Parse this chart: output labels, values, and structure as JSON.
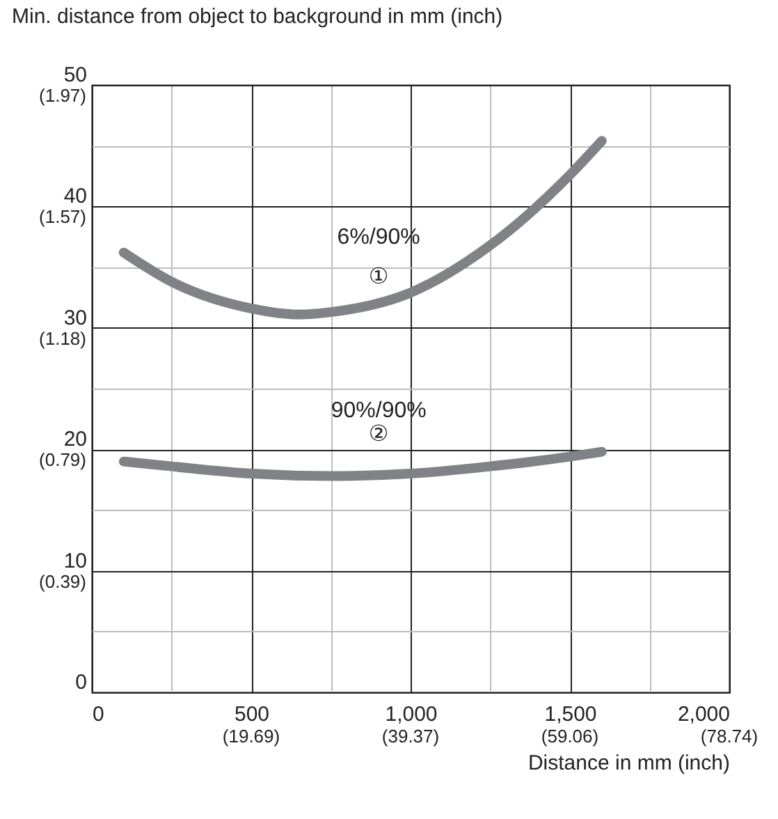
{
  "chart_data": {
    "type": "line",
    "xlabel": "Distance in mm (inch)",
    "ylabel": "Min. distance from object to background in mm (inch)",
    "xlim": [
      0,
      2000
    ],
    "ylim": [
      0,
      50
    ],
    "xticks": [
      0,
      {
        "value": 250,
        "label": null
      },
      500,
      {
        "value": 750,
        "label": null
      },
      {
        "value": 1000,
        "label": "1,000"
      },
      {
        "value": 1250,
        "label": null
      },
      {
        "value": 1500,
        "label": "1,500"
      },
      {
        "value": 1750,
        "label": null
      },
      {
        "value": 2000,
        "label": "2,000"
      }
    ],
    "yticks": [
      0,
      {
        "value": 5,
        "label": null
      },
      10,
      {
        "value": 15,
        "label": null
      },
      20,
      {
        "value": 25,
        "label": null
      },
      30,
      {
        "value": 35,
        "label": null
      },
      40,
      {
        "value": 45,
        "label": null
      },
      50
    ],
    "grid": true,
    "line_style": "solid",
    "series": [
      {
        "color": "#808285",
        "x": [
          100,
          250,
          500,
          650,
          750,
          1000,
          1250,
          1500,
          1600
        ],
        "values": [
          36.2,
          33.8,
          31.6,
          31.1,
          31.3,
          32.9,
          36.8,
          42.6,
          45.4
        ]
      },
      {
        "color": "#808285",
        "x": [
          100,
          250,
          500,
          750,
          1000,
          1250,
          1500,
          1600
        ],
        "values": [
          19.0,
          18.6,
          18.0,
          17.8,
          18.0,
          18.6,
          19.4,
          19.8
        ]
      }
    ],
    "annotations": [
      "6%/90%",
      "①",
      "90%/90%",
      "②",
      "(19.69)",
      "(39.37)",
      "(59.06)",
      "(78.74)",
      "(0.39)",
      "(0.79)",
      "(1.18)",
      "(1.57)",
      "(1.97)"
    ]
  }
}
